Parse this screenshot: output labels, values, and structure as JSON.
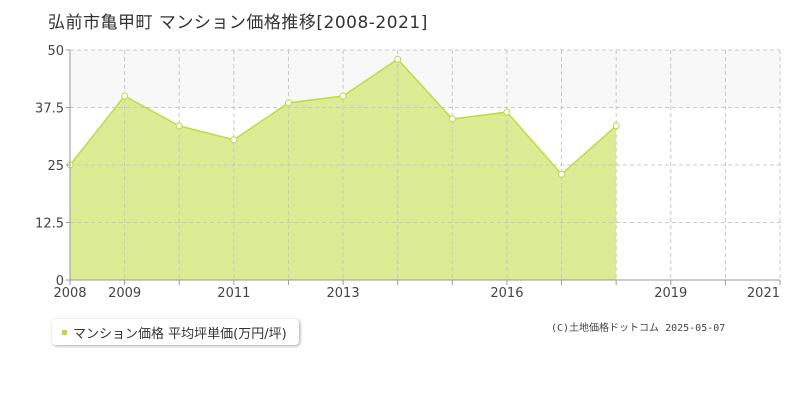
{
  "chart_data": {
    "type": "area",
    "title": "弘前市亀甲町 マンション価格推移[2008-2021]",
    "x": [
      2008,
      2009,
      2010,
      2011,
      2012,
      2013,
      2014,
      2015,
      2016,
      2017,
      2018,
      2019,
      2020,
      2021
    ],
    "series": [
      {
        "name": "マンション価格 平均坪単価(万円/坪)",
        "points": [
          {
            "x": 2008,
            "y": 25
          },
          {
            "x": 2009,
            "y": 40
          },
          {
            "x": 2010,
            "y": 33.5
          },
          {
            "x": 2011,
            "y": 30.5
          },
          {
            "x": 2012,
            "y": 38.5
          },
          {
            "x": 2013,
            "y": 40
          },
          {
            "x": 2014,
            "y": 48
          },
          {
            "x": 2015,
            "y": 35
          },
          {
            "x": 2016,
            "y": 36.5
          },
          {
            "x": 2017,
            "y": 23
          },
          {
            "x": 2018,
            "y": 33.5
          }
        ]
      }
    ],
    "xlim": [
      2008,
      2021
    ],
    "ylim": [
      0,
      50
    ],
    "xticks": [
      2008,
      2009,
      2011,
      2013,
      2016,
      2019,
      2021
    ],
    "yticks": [
      0,
      12.5,
      25,
      37.5,
      50
    ],
    "ytick_labels": [
      "0",
      "12.5",
      "25",
      "37.5",
      "50"
    ],
    "grid": true,
    "legend": "bottom-left",
    "colors": {
      "fill": "#dcec94",
      "line": "#bcdb44",
      "marker": "#bcdb44",
      "band": "#f9f8f8",
      "grid": "#c8c8c8",
      "axis": "#9a9a9a"
    }
  },
  "credit": "(C)土地価格ドットコム 2025-05-07"
}
